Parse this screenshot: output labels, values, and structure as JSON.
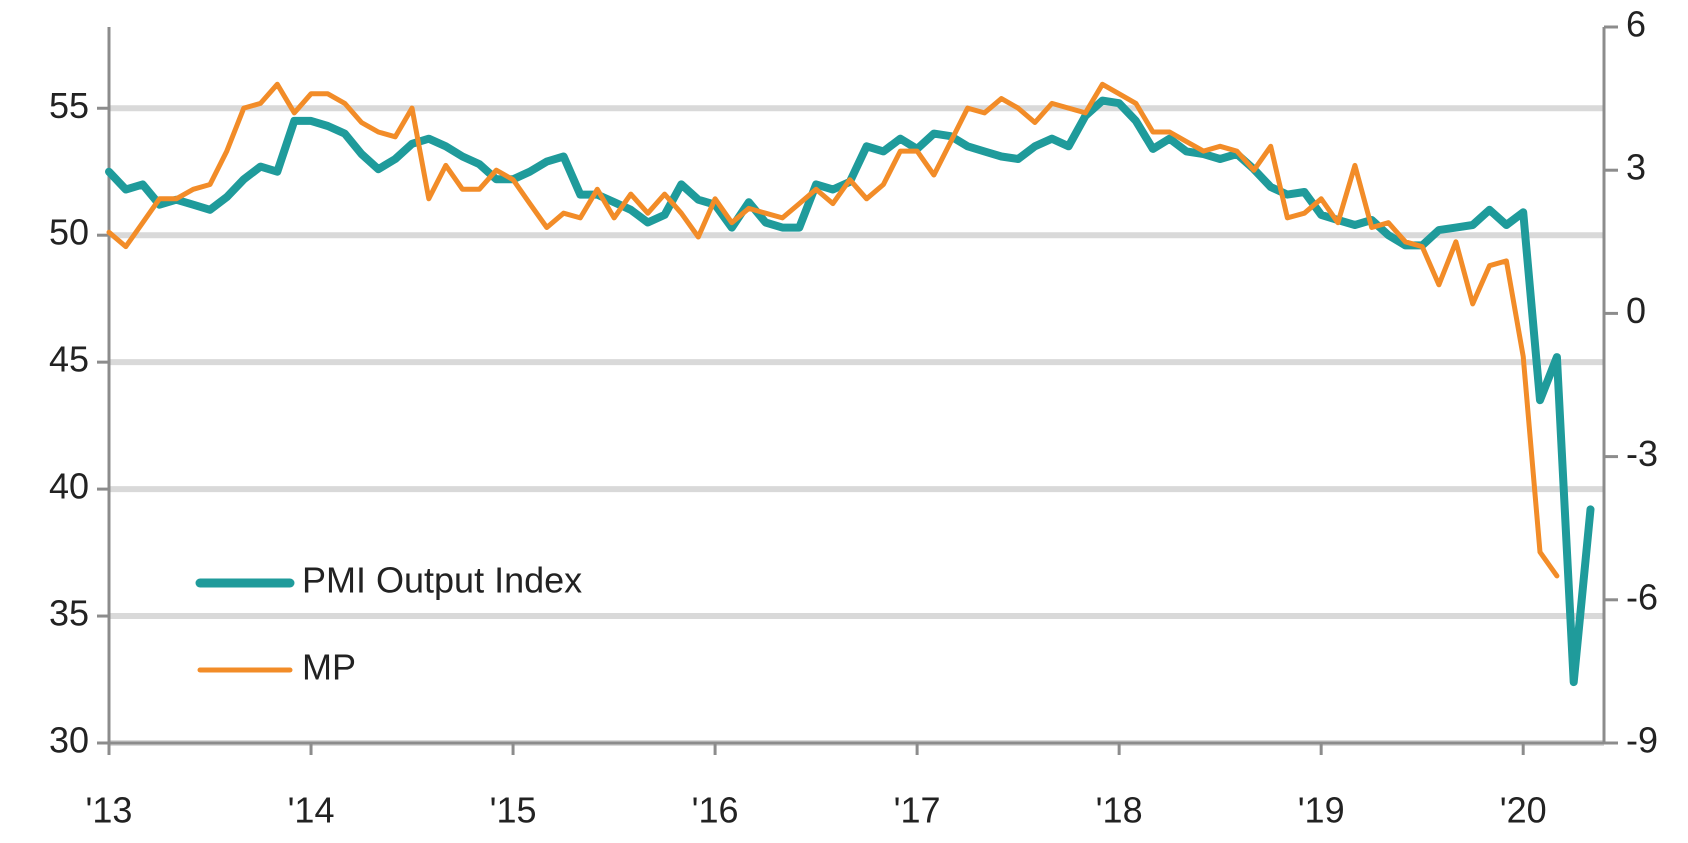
{
  "chart_data": {
    "type": "line",
    "x": [
      2013,
      2013.083,
      2013.167,
      2013.25,
      2013.333,
      2013.417,
      2013.5,
      2013.583,
      2013.667,
      2013.75,
      2013.833,
      2013.917,
      2014,
      2014.083,
      2014.167,
      2014.25,
      2014.333,
      2014.417,
      2014.5,
      2014.583,
      2014.667,
      2014.75,
      2014.833,
      2014.917,
      2015,
      2015.083,
      2015.167,
      2015.25,
      2015.333,
      2015.417,
      2015.5,
      2015.583,
      2015.667,
      2015.75,
      2015.833,
      2015.917,
      2016,
      2016.083,
      2016.167,
      2016.25,
      2016.333,
      2016.417,
      2016.5,
      2016.583,
      2016.667,
      2016.75,
      2016.833,
      2016.917,
      2017,
      2017.083,
      2017.167,
      2017.25,
      2017.333,
      2017.417,
      2017.5,
      2017.583,
      2017.667,
      2017.75,
      2017.833,
      2017.917,
      2018,
      2018.083,
      2018.167,
      2018.25,
      2018.333,
      2018.417,
      2018.5,
      2018.583,
      2018.667,
      2018.75,
      2018.833,
      2018.917,
      2019,
      2019.083,
      2019.167,
      2019.25,
      2019.333,
      2019.417,
      2019.5,
      2019.583,
      2019.667,
      2019.75,
      2019.833,
      2019.917,
      2020,
      2020.083,
      2020.167,
      2020.25,
      2020.333
    ],
    "series": [
      {
        "name": "PMI Output Index",
        "color": "#1f9b9b",
        "values": [
          52.5,
          51.8,
          52.0,
          51.2,
          51.4,
          51.2,
          51.0,
          51.5,
          52.2,
          52.7,
          52.5,
          54.5,
          54.5,
          54.3,
          54.0,
          53.2,
          52.6,
          53.0,
          53.6,
          53.8,
          53.5,
          53.1,
          52.8,
          52.2,
          52.2,
          52.5,
          52.9,
          53.1,
          51.6,
          51.6,
          51.3,
          51.0,
          50.5,
          50.8,
          52.0,
          51.4,
          51.2,
          50.3,
          51.3,
          50.5,
          50.3,
          50.3,
          52.0,
          51.8,
          52.1,
          53.5,
          53.3,
          53.8,
          53.4,
          54.0,
          53.9,
          53.5,
          53.3,
          53.1,
          53.0,
          53.5,
          53.8,
          53.5,
          54.7,
          55.3,
          55.2,
          54.5,
          53.4,
          53.8,
          53.3,
          53.2,
          53.0,
          53.2,
          52.6,
          51.9,
          51.6,
          51.7,
          50.8,
          50.6,
          50.4,
          50.6,
          50.0,
          49.6,
          49.6,
          50.2,
          50.3,
          50.4,
          51.0,
          50.4,
          50.9,
          43.5,
          45.2,
          32.4,
          39.2
        ]
      },
      {
        "name": "MP",
        "color": "#f28c28",
        "axis": "y2",
        "values": [
          1.7,
          1.4,
          1.9,
          2.4,
          2.4,
          2.6,
          2.7,
          3.4,
          4.3,
          4.4,
          4.8,
          4.2,
          4.6,
          4.6,
          4.4,
          4.0,
          3.8,
          3.7,
          4.3,
          2.4,
          3.1,
          2.6,
          2.6,
          3.0,
          2.8,
          2.3,
          1.8,
          2.1,
          2.0,
          2.6,
          2.0,
          2.5,
          2.1,
          2.5,
          2.1,
          1.6,
          2.4,
          1.9,
          2.2,
          2.1,
          2.0,
          2.3,
          2.6,
          2.3,
          2.8,
          2.4,
          2.7,
          3.4,
          3.4,
          2.9,
          3.6,
          4.3,
          4.2,
          4.5,
          4.3,
          4.0,
          4.4,
          4.3,
          4.2,
          4.8,
          4.6,
          4.4,
          3.8,
          3.8,
          3.6,
          3.4,
          3.5,
          3.4,
          3.0,
          3.5,
          2.0,
          2.1,
          2.4,
          1.9,
          3.1,
          1.8,
          1.9,
          1.5,
          1.4,
          0.6,
          1.5,
          0.2,
          1.0,
          1.1,
          -0.9,
          -5.0,
          -5.5,
          null,
          null
        ]
      }
    ],
    "xlim": [
      2013,
      2020.4
    ],
    "xticks": [
      {
        "value": 2013,
        "label": "'13"
      },
      {
        "value": 2014,
        "label": "'14"
      },
      {
        "value": 2015,
        "label": "'15"
      },
      {
        "value": 2016,
        "label": "'16"
      },
      {
        "value": 2017,
        "label": "'17"
      },
      {
        "value": 2018,
        "label": "'18"
      },
      {
        "value": 2019,
        "label": "'19"
      },
      {
        "value": 2020,
        "label": "'20"
      }
    ],
    "ylim": [
      30,
      58.2
    ],
    "yticks": [
      30,
      35,
      40,
      45,
      50,
      55
    ],
    "y2lim": [
      -9,
      6
    ],
    "y2ticks": [
      -9,
      -6,
      -3,
      0,
      3,
      6
    ],
    "grid": true,
    "legend": "lower left"
  }
}
